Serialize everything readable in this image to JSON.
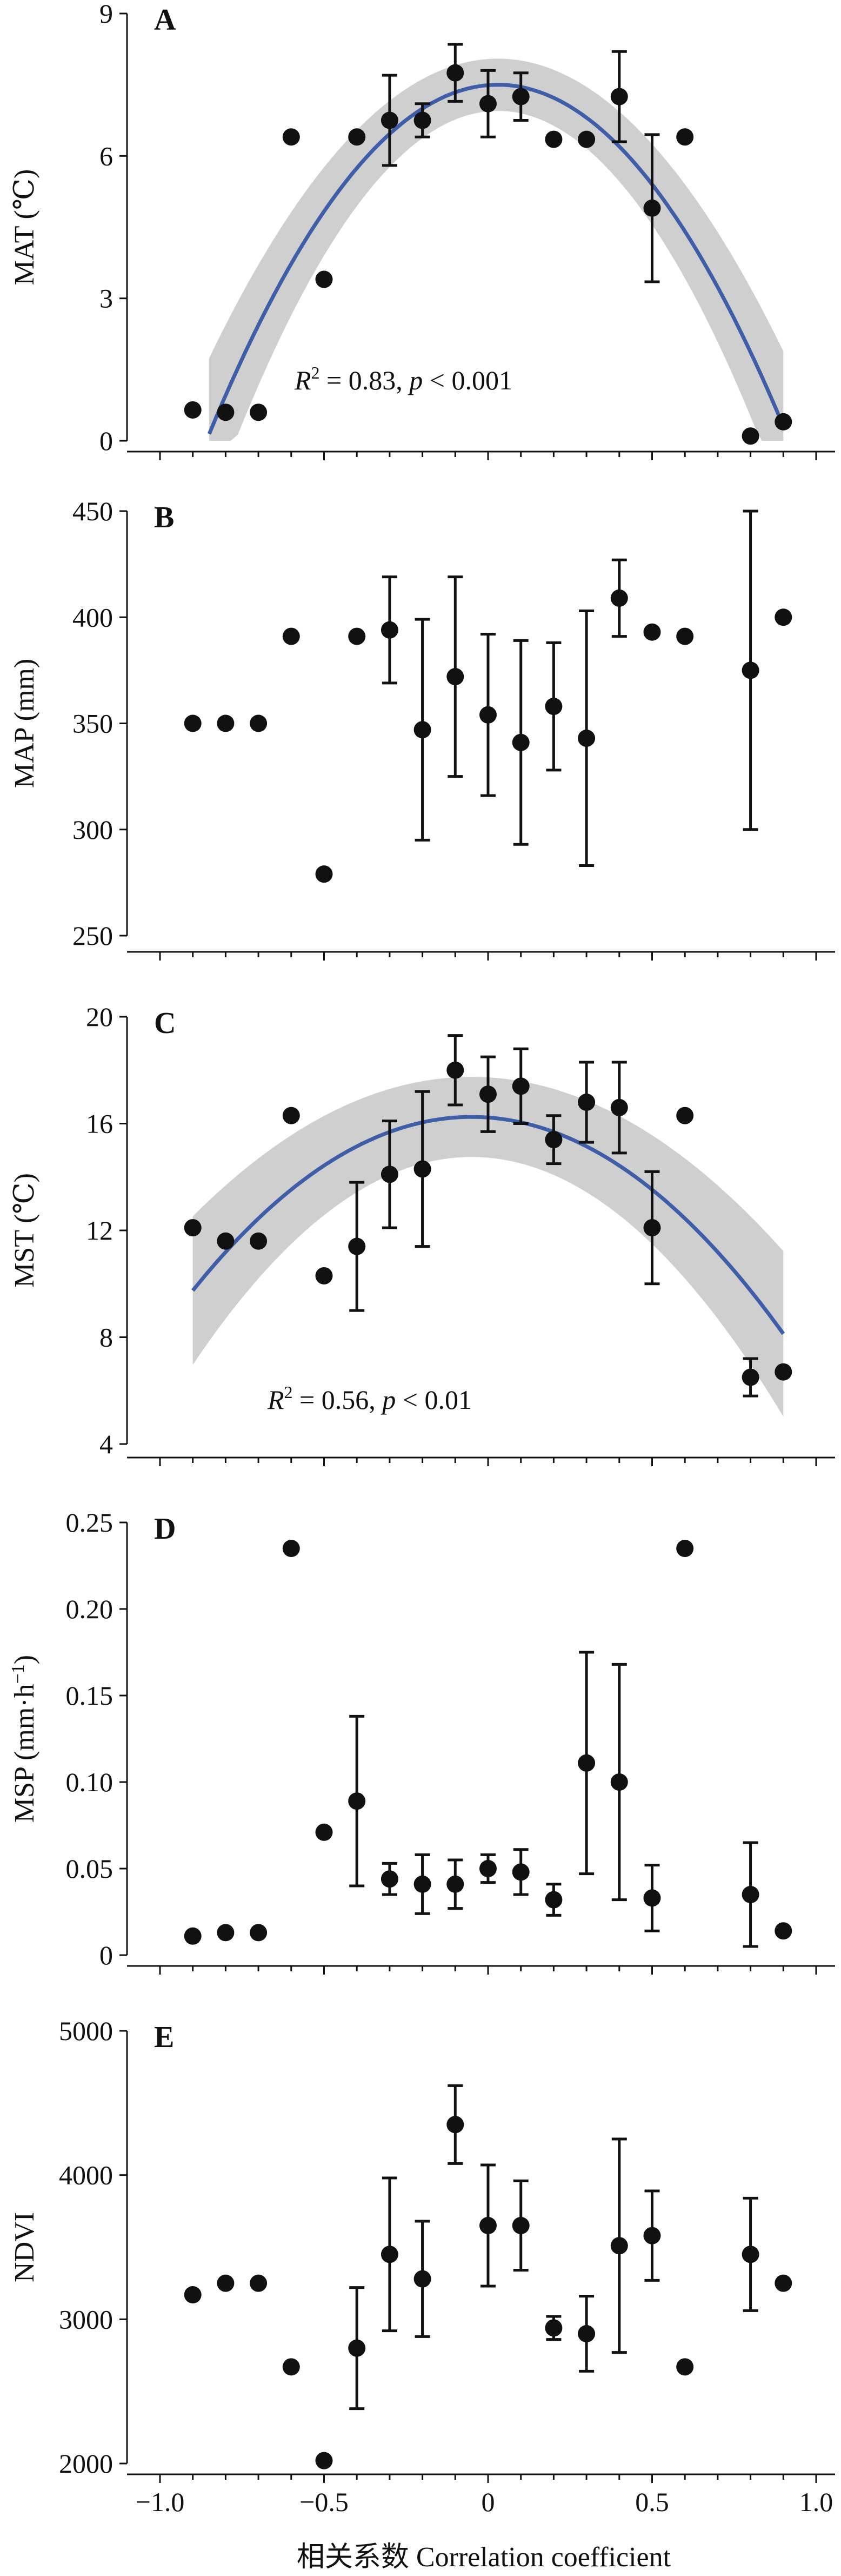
{
  "figure": {
    "x_axis_label": "相关系数 Correlation coefficient",
    "x_tick_labels": [
      "−1.0",
      "−0.5",
      "0",
      "0.5",
      "1.0"
    ]
  },
  "colors": {
    "fit_line": "#3f5ea8",
    "confidence_band": "#cfcfcf",
    "points": "#111111"
  },
  "chart_data": [
    {
      "type": "scatter",
      "panel": "A",
      "ylabel": "MAT (℃)",
      "xlim": [
        -1.0,
        1.0
      ],
      "ylim": [
        0,
        9
      ],
      "yticks": [
        0,
        3,
        6,
        9
      ],
      "ytick_labels": [
        "0",
        "3",
        "6",
        "9"
      ],
      "points": [
        {
          "x": -0.9,
          "y": 0.65
        },
        {
          "x": -0.8,
          "y": 0.6
        },
        {
          "x": -0.7,
          "y": 0.6
        },
        {
          "x": -0.6,
          "y": 6.4
        },
        {
          "x": -0.5,
          "y": 3.4
        },
        {
          "x": -0.4,
          "y": 6.4
        },
        {
          "x": -0.3,
          "y": 6.75,
          "err": 0.95
        },
        {
          "x": -0.2,
          "y": 6.75,
          "err": 0.35
        },
        {
          "x": -0.1,
          "y": 7.75,
          "err": 0.6
        },
        {
          "x": 0.0,
          "y": 7.1,
          "err": 0.7
        },
        {
          "x": 0.1,
          "y": 7.25,
          "err": 0.5
        },
        {
          "x": 0.2,
          "y": 6.35
        },
        {
          "x": 0.3,
          "y": 6.35
        },
        {
          "x": 0.4,
          "y": 7.25,
          "err": 0.95
        },
        {
          "x": 0.5,
          "y": 4.9,
          "err": 1.55
        },
        {
          "x": 0.6,
          "y": 6.4
        },
        {
          "x": 0.8,
          "y": 0.1
        },
        {
          "x": 0.9,
          "y": 0.4
        }
      ],
      "fit": {
        "a": 7.5,
        "b": 0.03,
        "c": 9.5,
        "xmin": -0.85,
        "xmax": 0.9
      },
      "band_halfwidth": [
        0.55,
        1.6
      ],
      "annotation": {
        "r2_label": "R",
        "r2_sup": "2",
        "r2_value": "= 0.83, ",
        "p_label": "p",
        "p_value": " < 0.001"
      }
    },
    {
      "type": "scatter",
      "panel": "B",
      "ylabel": "MAP (mm)",
      "xlim": [
        -1.0,
        1.0
      ],
      "ylim": [
        250,
        450
      ],
      "yticks": [
        250,
        300,
        350,
        400,
        450
      ],
      "ytick_labels": [
        "250",
        "300",
        "350",
        "400",
        "450"
      ],
      "points": [
        {
          "x": -0.9,
          "y": 350
        },
        {
          "x": -0.8,
          "y": 350
        },
        {
          "x": -0.7,
          "y": 350
        },
        {
          "x": -0.6,
          "y": 391
        },
        {
          "x": -0.5,
          "y": 279
        },
        {
          "x": -0.4,
          "y": 391
        },
        {
          "x": -0.3,
          "y": 394,
          "err": 25
        },
        {
          "x": -0.2,
          "y": 347,
          "err": 52
        },
        {
          "x": -0.1,
          "y": 372,
          "err": 47
        },
        {
          "x": 0.0,
          "y": 354,
          "err": 38
        },
        {
          "x": 0.1,
          "y": 341,
          "err": 48
        },
        {
          "x": 0.2,
          "y": 358,
          "err": 30
        },
        {
          "x": 0.3,
          "y": 343,
          "err": 60
        },
        {
          "x": 0.4,
          "y": 409,
          "err": 18
        },
        {
          "x": 0.5,
          "y": 393
        },
        {
          "x": 0.6,
          "y": 391
        },
        {
          "x": 0.8,
          "y": 375,
          "err": 75
        },
        {
          "x": 0.9,
          "y": 400
        }
      ]
    },
    {
      "type": "scatter",
      "panel": "C",
      "ylabel": "MST (℃)",
      "xlim": [
        -1.0,
        1.0
      ],
      "ylim": [
        4,
        20
      ],
      "yticks": [
        4,
        8,
        12,
        16,
        20
      ],
      "ytick_labels": [
        "4",
        "8",
        "12",
        "16",
        "20"
      ],
      "points": [
        {
          "x": -0.9,
          "y": 12.1
        },
        {
          "x": -0.8,
          "y": 11.6
        },
        {
          "x": -0.7,
          "y": 11.6
        },
        {
          "x": -0.6,
          "y": 16.3
        },
        {
          "x": -0.5,
          "y": 10.3
        },
        {
          "x": -0.4,
          "y": 11.4,
          "err": 2.4
        },
        {
          "x": -0.3,
          "y": 14.1,
          "err": 2.0
        },
        {
          "x": -0.2,
          "y": 14.3,
          "err": 2.9
        },
        {
          "x": -0.1,
          "y": 18.0,
          "err": 1.3
        },
        {
          "x": 0.0,
          "y": 17.1,
          "err": 1.4
        },
        {
          "x": 0.1,
          "y": 17.4,
          "err": 1.4
        },
        {
          "x": 0.2,
          "y": 15.4,
          "err": 0.9
        },
        {
          "x": 0.3,
          "y": 16.8,
          "err": 1.5
        },
        {
          "x": 0.4,
          "y": 16.6,
          "err": 1.7
        },
        {
          "x": 0.5,
          "y": 12.1,
          "err": 2.1
        },
        {
          "x": 0.6,
          "y": 16.3
        },
        {
          "x": 0.8,
          "y": 6.5,
          "err": 0.7
        },
        {
          "x": 0.9,
          "y": 6.7
        }
      ],
      "fit": {
        "a": 16.25,
        "b": -0.05,
        "c": 9.0,
        "xmin": -0.9,
        "xmax": 0.9
      },
      "band_halfwidth": [
        1.5,
        3.1
      ],
      "annotation": {
        "r2_label": "R",
        "r2_sup": "2",
        "r2_value": "= 0.56, ",
        "p_label": "p",
        "p_value": " < 0.01"
      }
    },
    {
      "type": "scatter",
      "panel": "D",
      "ylabel": "MSP (mm·h",
      "ylabel_sup": "−1",
      "ylabel_end": ")",
      "xlim": [
        -1.0,
        1.0
      ],
      "ylim": [
        0,
        0.25
      ],
      "yticks": [
        0,
        0.05,
        0.1,
        0.15,
        0.2,
        0.25
      ],
      "ytick_labels": [
        "0",
        "0.05",
        "0.10",
        "0.15",
        "0.20",
        "0.25"
      ],
      "points": [
        {
          "x": -0.9,
          "y": 0.011
        },
        {
          "x": -0.8,
          "y": 0.013
        },
        {
          "x": -0.7,
          "y": 0.013
        },
        {
          "x": -0.6,
          "y": 0.235
        },
        {
          "x": -0.5,
          "y": 0.071
        },
        {
          "x": -0.4,
          "y": 0.089,
          "err": 0.049
        },
        {
          "x": -0.3,
          "y": 0.044,
          "err": 0.009
        },
        {
          "x": -0.2,
          "y": 0.041,
          "err": 0.017
        },
        {
          "x": -0.1,
          "y": 0.041,
          "err": 0.014
        },
        {
          "x": 0.0,
          "y": 0.05,
          "err": 0.008
        },
        {
          "x": 0.1,
          "y": 0.048,
          "err": 0.013
        },
        {
          "x": 0.2,
          "y": 0.032,
          "err": 0.009
        },
        {
          "x": 0.3,
          "y": 0.111,
          "err": 0.064
        },
        {
          "x": 0.4,
          "y": 0.1,
          "err": 0.068
        },
        {
          "x": 0.5,
          "y": 0.033,
          "err": 0.019
        },
        {
          "x": 0.6,
          "y": 0.235
        },
        {
          "x": 0.8,
          "y": 0.035,
          "err": 0.03
        },
        {
          "x": 0.9,
          "y": 0.014
        }
      ]
    },
    {
      "type": "scatter",
      "panel": "E",
      "ylabel": "NDVI",
      "xlim": [
        -1.0,
        1.0
      ],
      "ylim": [
        2000,
        5000
      ],
      "yticks": [
        2000,
        3000,
        4000,
        5000
      ],
      "ytick_labels": [
        "2000",
        "3000",
        "4000",
        "5000"
      ],
      "points": [
        {
          "x": -0.9,
          "y": 3170
        },
        {
          "x": -0.8,
          "y": 3250
        },
        {
          "x": -0.7,
          "y": 3250
        },
        {
          "x": -0.6,
          "y": 2670
        },
        {
          "x": -0.5,
          "y": 2020
        },
        {
          "x": -0.4,
          "y": 2800,
          "err": 420
        },
        {
          "x": -0.3,
          "y": 3450,
          "err": 530
        },
        {
          "x": -0.2,
          "y": 3280,
          "err": 400
        },
        {
          "x": -0.1,
          "y": 4350,
          "err": 270
        },
        {
          "x": 0.0,
          "y": 3650,
          "err": 420
        },
        {
          "x": 0.1,
          "y": 3650,
          "err": 310
        },
        {
          "x": 0.2,
          "y": 2940,
          "err": 80
        },
        {
          "x": 0.3,
          "y": 2900,
          "err": 260
        },
        {
          "x": 0.4,
          "y": 3510,
          "err": 740
        },
        {
          "x": 0.5,
          "y": 3580,
          "err": 310
        },
        {
          "x": 0.6,
          "y": 2670
        },
        {
          "x": 0.8,
          "y": 3450,
          "err": 390
        },
        {
          "x": 0.9,
          "y": 3250
        }
      ]
    }
  ]
}
